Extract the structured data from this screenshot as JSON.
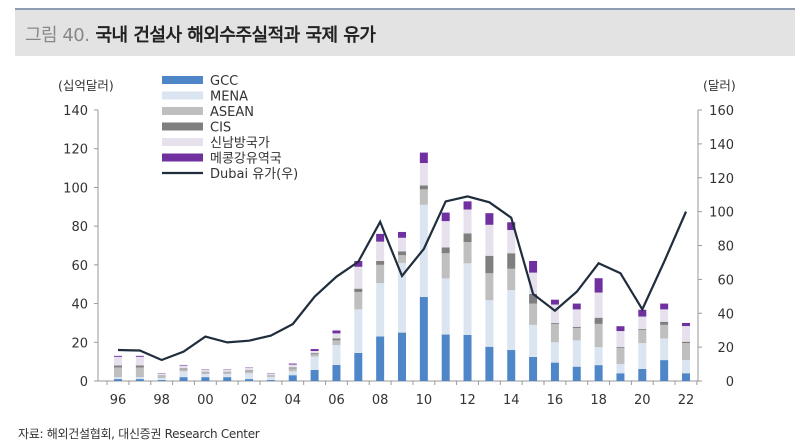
{
  "title": {
    "number": "그림 40.",
    "text": "국내 건설사 해외수주실적과 국제 유가"
  },
  "source": "자료: 해외건설협회, 대신증권 Research Center",
  "chart_data": {
    "type": "bar",
    "subtype": "stacked bar + line (secondary axis)",
    "ylabel": "(십억달러)",
    "y2label": "(달러)",
    "ylim": [
      0,
      140
    ],
    "y2lim": [
      0,
      160
    ],
    "yticks": [
      0,
      20,
      40,
      60,
      80,
      100,
      120,
      140
    ],
    "y2ticks": [
      0,
      20,
      40,
      60,
      80,
      100,
      120,
      140,
      160
    ],
    "legend_position": "top-left",
    "grid": false,
    "categories": [
      "96",
      "97",
      "98",
      "99",
      "00",
      "01",
      "02",
      "03",
      "04",
      "05",
      "06",
      "07",
      "08",
      "09",
      "10",
      "11",
      "12",
      "13",
      "14",
      "15",
      "16",
      "17",
      "18",
      "19",
      "20",
      "21",
      "22"
    ],
    "xtick_labels": [
      "96",
      "98",
      "00",
      "02",
      "04",
      "06",
      "08",
      "10",
      "12",
      "14",
      "16",
      "18",
      "20",
      "22"
    ],
    "series": [
      {
        "name": "GCC",
        "color": "#4f86c8",
        "values": [
          1,
          1,
          0.5,
          2,
          2,
          2,
          1,
          0.5,
          3,
          5.7,
          8.3,
          14.5,
          23,
          25,
          43.4,
          24,
          23.8,
          17.7,
          16,
          12.4,
          9.5,
          7.4,
          8.2,
          4,
          6.2,
          10.8,
          4
        ]
      },
      {
        "name": "MENA",
        "color": "#dbe5f2",
        "values": [
          1,
          1,
          1,
          3,
          1.5,
          1.5,
          3,
          1.5,
          2,
          6.9,
          10.3,
          22.5,
          27.6,
          36,
          47.6,
          29,
          37,
          24,
          31,
          16.6,
          10.5,
          13.6,
          9.3,
          4.8,
          13.4,
          11.2,
          6.8
        ]
      },
      {
        "name": "ASEAN",
        "color": "#bfbfbf",
        "values": [
          5,
          5,
          1,
          1,
          1,
          1,
          1,
          0.8,
          1.5,
          1.2,
          2.4,
          9,
          9.4,
          4,
          8,
          13,
          11,
          14,
          11,
          11,
          9.5,
          6.4,
          12,
          8.2,
          6.7,
          7,
          8.8
        ]
      },
      {
        "name": "CIS",
        "color": "#7f7f7f",
        "values": [
          1,
          1,
          0.3,
          0.5,
          0.3,
          0.3,
          0.5,
          0.2,
          0.5,
          0.6,
          1,
          1.7,
          2,
          2,
          2,
          3,
          4.4,
          9,
          8,
          5,
          0.5,
          0.6,
          3.2,
          0.5,
          0.5,
          1.6,
          0.7
        ]
      },
      {
        "name": "신남방국가",
        "color": "#e7e0ed",
        "values": [
          4.5,
          4.5,
          1,
          1.5,
          1,
          1,
          1.3,
          0.8,
          1.5,
          1.1,
          2.6,
          11.3,
          10,
          7,
          11.6,
          13.6,
          12.4,
          16,
          12,
          11,
          9.5,
          9,
          13,
          8.3,
          6.5,
          6.4,
          8.1
        ]
      },
      {
        "name": "메콩강유역국",
        "color": "#7030a0",
        "values": [
          0.5,
          0.5,
          0.2,
          0.3,
          0.2,
          0.2,
          0.2,
          0.2,
          0.5,
          1,
          1.5,
          3,
          4,
          3,
          5.4,
          4.4,
          4.2,
          6,
          4,
          6,
          2.5,
          3,
          7.4,
          2.5,
          3.5,
          3,
          1.6
        ]
      },
      {
        "name": "Dubai 유가(우)",
        "type": "line",
        "axis": "right",
        "color": "#1f2d3d",
        "values": [
          18.3,
          18,
          12.4,
          17.3,
          26.2,
          22.8,
          23.8,
          26.8,
          33.6,
          49.8,
          61.6,
          70.4,
          94,
          62,
          78,
          106,
          109,
          105.5,
          96.4,
          51.4,
          41.5,
          52.7,
          69.5,
          63.6,
          42.3,
          70.4,
          100
        ]
      }
    ]
  }
}
